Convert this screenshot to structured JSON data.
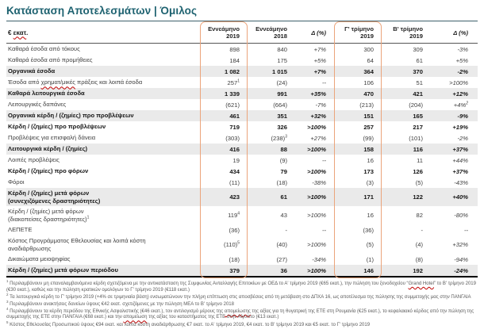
{
  "title": "Κατάσταση Αποτελεσμάτων | Όμιλος",
  "colors": {
    "title_teal": "#1e6270",
    "highlight_orange": "#eba47b",
    "shaded_row_gray": "#eaeaea",
    "squiggle_red": "#c00000"
  },
  "table": {
    "unit_label": "€ ~εκατ~.",
    "columns": [
      {
        "line1": "Εννεάμηνο",
        "line2": "2019",
        "highlighted": true,
        "italic": false
      },
      {
        "line1": "Εννεάμηνο",
        "line2": "2018",
        "highlighted": false,
        "italic": false
      },
      {
        "line1": "Δ (%)",
        "line2": "",
        "highlighted": false,
        "italic": true
      },
      {
        "line1": "Γ' τρίμηνο",
        "line2": "2019",
        "highlighted": true,
        "italic": false
      },
      {
        "line1": "Β' τρίμηνο",
        "line2": "2019",
        "highlighted": false,
        "italic": false
      },
      {
        "line1": "Δ (%)",
        "line2": "",
        "highlighted": false,
        "italic": true
      }
    ],
    "rows": [
      {
        "lines": [
          "Καθαρά έσοδα από τόκους"
        ],
        "values": [
          "898",
          "840",
          "+7%",
          "300",
          "309",
          "-3%"
        ],
        "bold": false,
        "shaded": false
      },
      {
        "lines": [
          "Καθαρά έσοδα από προμήθειες"
        ],
        "values": [
          "184",
          "175",
          "+5%",
          "64",
          "61",
          "+5%"
        ],
        "bold": false,
        "shaded": false
      },
      {
        "lines": [
          "Οργανικά έσοδα"
        ],
        "values": [
          "1 082",
          "1 015",
          "+7%",
          "364",
          "370",
          "-2%"
        ],
        "bold": true,
        "shaded": true
      },
      {
        "lines": [
          "Έσοδα από ~χρηματ/μικές~ πράξεις και λοιπά έσοδα"
        ],
        "values": [
          "257^1",
          "(24)",
          "--",
          "106",
          "51",
          ">100%"
        ],
        "bold": false,
        "shaded": false
      },
      {
        "lines": [
          "Καθαρά λειτουργικά έσοδα"
        ],
        "values": [
          "1 339",
          "991",
          "+35%",
          "470",
          "421",
          "+12%"
        ],
        "bold": true,
        "shaded": true
      },
      {
        "lines": [
          "Λειτουργικές δαπάνες"
        ],
        "values": [
          "(621)",
          "(664)",
          "-7%",
          "(213)",
          "(204)",
          "+4%^2"
        ],
        "bold": false,
        "shaded": false
      },
      {
        "lines": [
          "Οργανικά κέρδη / (ζημίες)  προ προβλέψεων"
        ],
        "values": [
          "461",
          "351",
          "+32%",
          "151",
          "165",
          "-9%"
        ],
        "bold": true,
        "shaded": true
      },
      {
        "lines": [
          "Κέρδη / (ζημίες) προ προβλέψεων"
        ],
        "values": [
          "719",
          "326",
          ">100%",
          "257",
          "217",
          "+19%"
        ],
        "bold": true,
        "shaded": false
      },
      {
        "lines": [
          "Προβλέψεις για επισφαλή δάνεια"
        ],
        "values": [
          "(303)",
          "(238)^3",
          "+27%",
          "(99)",
          "(101)",
          "-2%"
        ],
        "bold": false,
        "shaded": false
      },
      {
        "lines": [
          "Λειτουργικά κέρδη / (ζημίες)"
        ],
        "values": [
          "416",
          "88",
          ">100%",
          "158",
          "116",
          "+37%"
        ],
        "bold": true,
        "shaded": true
      },
      {
        "lines": [
          "Λοιπές προβλέψεις"
        ],
        "values": [
          "19",
          "(9)",
          "--",
          "16",
          "11",
          "+44%"
        ],
        "bold": false,
        "shaded": false
      },
      {
        "lines": [
          "Κέρδη / (ζημίες) προ φόρων"
        ],
        "values": [
          "434",
          "79",
          ">100%",
          "173",
          "126",
          "+37%"
        ],
        "bold": true,
        "shaded": false
      },
      {
        "lines": [
          "Φόροι"
        ],
        "values": [
          "(11)",
          "(18)",
          "-38%",
          "(3)",
          "(5)",
          "-43%"
        ],
        "bold": false,
        "shaded": false
      },
      {
        "lines": [
          "Κέρδη / (ζημίες) μετά φόρων",
          "(συνεχιζόμενες δραστηριότητες)"
        ],
        "values": [
          "423",
          "61",
          ">100%",
          "171",
          "122",
          "+40%"
        ],
        "bold": true,
        "shaded": true
      },
      {
        "lines": [
          "Κέρδη / (ζημίες) μετά φόρων",
          "(διακοπείσες δραστηριότητες)^1"
        ],
        "values": [
          "119^4",
          "43",
          ">100%",
          "16",
          "82",
          "-80%"
        ],
        "bold": false,
        "shaded": false
      },
      {
        "lines": [
          "ΛΕΠΕΤΕ"
        ],
        "values": [
          "(36)",
          "-",
          "--",
          "(36)",
          "-",
          "--"
        ],
        "bold": false,
        "shaded": false
      },
      {
        "lines": [
          "Κόστος Προγράμματος  Εθελουσίας και λοιπά κόστη",
          "αναδιάρθρωσης"
        ],
        "values": [
          "(110)^5",
          "(40)",
          ">100%",
          "(5)",
          "(4)",
          "+32%"
        ],
        "bold": false,
        "shaded": false
      },
      {
        "lines": [
          "Δικαιώματα μειοψηφίας"
        ],
        "values": [
          "(18)",
          "(27)",
          "-34%",
          "(1)",
          "(8)",
          "-94%"
        ],
        "bold": false,
        "shaded": false
      },
      {
        "lines": [
          "Κέρδη / (ζημίες) μετά φόρων περιόδου"
        ],
        "values": [
          "379",
          "36",
          ">100%",
          "146",
          "192",
          "-24%"
        ],
        "bold": true,
        "shaded": true,
        "last": true
      }
    ]
  },
  "footnotes": [
    {
      "num": "1",
      "text": "Περιλαμβάνουν μη επαναλαμβανόμενα κέρδη σχετιζόμενα με την αντικατάσταση της Συμφωνίας Ανταλλαγής Επιτοκίων με ΟΕΔ το Α' τρίμηνο 2019 (€65 εκατ.), την πώληση του ξενοδοχείου “~Grand Hotel~” το Β' τρίμηνο 2019 (€30 εκατ.), καθώς και την πώληση κρατικών ομολόγων το Γ' τρίμηνο 2019 (€118 εκατ.)"
    },
    {
      "num": "2",
      "text": "Τα λειτουργικά κέρδη το Γ' τρίμηνο 2019 (+4% σε τριμηνιαία βάση) ενσωματώνουν την πλήρη επίπτωση στις αποσβέσεις από τη μετάβαση στο ΔΠΧΑ 16, ως αποτέλεσμα της πώλησης της συμμετοχής μας στην ΠΑΝΓΑΙΑ"
    },
    {
      "num": "3",
      "text": "Περιλαμβάνουν ανακτήσεις δανείων ύψους €42 εκατ. σχετιζόμενες με την πώληση ΜΕΑ το Β' τρίμηνο 2018"
    },
    {
      "num": "4",
      "text": "Περιλαμβάνουν τα κέρδη περιόδου της Εθνικής Ασφαλιστικής (€46 εκατ.), τον αντιλογισμό μέρους της ~απομείωσης~ της αξίας για τη θυγατρική της ΕΤΕ στη Ρουμανία (€25 εκατ.),  το κεφαλαιακό κέρδος από την πώληση της συμμετοχής της ΕΤΕ στην ΠΑΝΓΑΙΑ (€68 εκατ.) και την ~απομείωση~ της αξίας του καταστήματος της ΕΤΕ στην Αίγυπτο (€13 εκατ.)"
    },
    {
      "num": "5",
      "text": "Κόστος Εθελουσίας Προσωπικού ύψους €94 εκατ. και λοιπά κόστη αναδιάρθρωσης €7 εκατ. το Α' τρίμηνο 2019, €4 εκατ. το Β' τρίμηνο 2019 και €5 εκατ. το Γ' τρίμηνο 2019"
    }
  ]
}
